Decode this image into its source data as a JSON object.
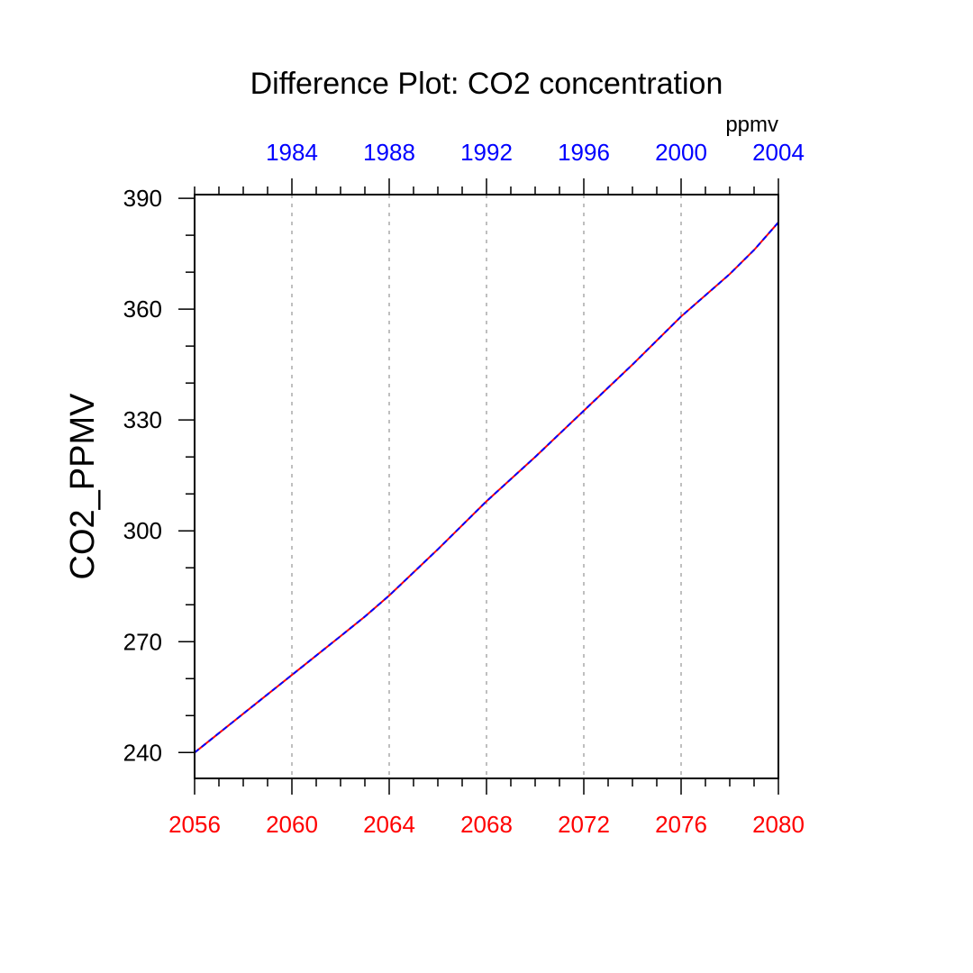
{
  "chart_data": {
    "type": "line",
    "title": "Difference Plot: CO2 concentration",
    "units_label": "ppmv",
    "ylabel": "CO2_PPMV",
    "xlabel": "",
    "bottom_axis": {
      "ticks": [
        2056,
        2060,
        2064,
        2068,
        2072,
        2076,
        2080
      ],
      "tick_labels": [
        "2056",
        "2060",
        "2064",
        "2068",
        "2072",
        "2076",
        "2080"
      ],
      "range": [
        2056,
        2080
      ],
      "color": "#ff0000"
    },
    "top_axis": {
      "ticks": [
        1984,
        1988,
        1992,
        1996,
        2000,
        2004
      ],
      "tick_labels": [
        "1984",
        "1988",
        "1992",
        "1996",
        "2000",
        "2004"
      ],
      "range": [
        1980,
        2004
      ],
      "color": "#0000ff"
    },
    "ylim": [
      233,
      391
    ],
    "yticks": [
      240,
      270,
      300,
      330,
      360,
      390
    ],
    "ytick_labels": [
      "240",
      "270",
      "300",
      "330",
      "360",
      "390"
    ],
    "grid": "vertical dotted at major bottom-axis ticks",
    "series": [
      {
        "name": "red",
        "color": "#ff0000",
        "axis": "bottom",
        "x": [
          2056,
          2058,
          2060,
          2062,
          2063,
          2064,
          2066,
          2068,
          2070,
          2072,
          2074,
          2076,
          2078,
          2079,
          2080
        ],
        "y": [
          240,
          250.5,
          261,
          271.5,
          276.8,
          282.5,
          295,
          308,
          320,
          332.5,
          345,
          358,
          369.5,
          376,
          383.5
        ]
      },
      {
        "name": "blue",
        "color": "#0000ff",
        "axis": "top",
        "x": [
          1980,
          1982,
          1984,
          1986,
          1987,
          1988,
          1990,
          1992,
          1994,
          1996,
          1998,
          2000,
          2002,
          2003,
          2004
        ],
        "y": [
          240,
          250.5,
          261,
          271.5,
          276.8,
          282.5,
          295,
          308,
          320,
          332.5,
          345,
          358,
          369.5,
          376,
          383.5
        ]
      }
    ]
  }
}
